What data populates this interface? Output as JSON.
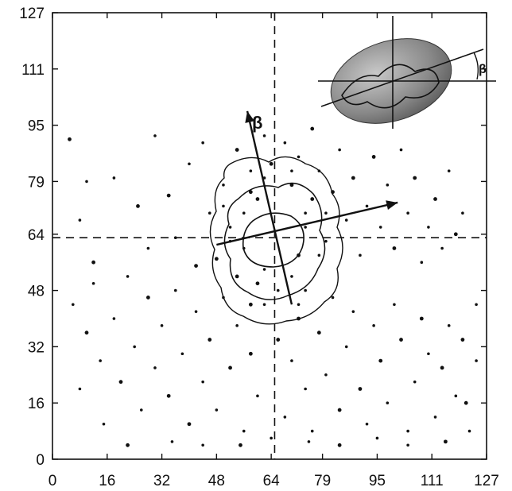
{
  "chart_data": {
    "type": "scatter",
    "title": "",
    "xlabel": "",
    "ylabel": "",
    "xlim": [
      0,
      127
    ],
    "ylim": [
      0,
      127
    ],
    "x_ticks": [
      "0",
      "16",
      "32",
      "48",
      "64",
      "79",
      "95",
      "111",
      "127"
    ],
    "y_ticks": [
      "0",
      "16",
      "32",
      "48",
      "64",
      "79",
      "95",
      "111",
      "127"
    ],
    "tick_values": [
      0,
      16,
      32,
      48,
      64,
      79,
      95,
      111,
      127
    ],
    "grid": false,
    "legend": "none",
    "center": [
      65,
      63
    ],
    "crosshair": {
      "x": 65,
      "y": 63
    },
    "axis_beta": {
      "label": "β",
      "from": [
        70,
        44
      ],
      "to": [
        57,
        99
      ]
    },
    "axis_transverse": {
      "from": [
        48,
        61
      ],
      "to": [
        101,
        73
      ]
    },
    "inset": {
      "beta_label": "β",
      "position": "top-right"
    },
    "series": [
      {
        "values": [
          [
            5,
            91
          ],
          [
            8,
            68
          ],
          [
            10,
            79
          ],
          [
            12,
            56
          ],
          [
            18,
            80
          ],
          [
            22,
            52
          ],
          [
            25,
            72
          ],
          [
            28,
            60
          ],
          [
            30,
            92
          ],
          [
            34,
            75
          ],
          [
            36,
            63
          ],
          [
            40,
            84
          ],
          [
            42,
            55
          ],
          [
            44,
            90
          ],
          [
            46,
            70
          ],
          [
            48,
            57
          ],
          [
            50,
            78
          ],
          [
            52,
            66
          ],
          [
            54,
            88
          ],
          [
            56,
            60
          ],
          [
            58,
            82
          ],
          [
            60,
            74
          ],
          [
            62,
            92
          ],
          [
            68,
            90
          ],
          [
            70,
            78
          ],
          [
            72,
            86
          ],
          [
            74,
            70
          ],
          [
            76,
            94
          ],
          [
            78,
            82
          ],
          [
            80,
            62
          ],
          [
            82,
            76
          ],
          [
            84,
            88
          ],
          [
            86,
            68
          ],
          [
            88,
            80
          ],
          [
            90,
            58
          ],
          [
            92,
            72
          ],
          [
            94,
            86
          ],
          [
            96,
            66
          ],
          [
            98,
            78
          ],
          [
            100,
            60
          ],
          [
            102,
            88
          ],
          [
            104,
            70
          ],
          [
            106,
            80
          ],
          [
            108,
            56
          ],
          [
            110,
            66
          ],
          [
            112,
            74
          ],
          [
            114,
            60
          ],
          [
            116,
            82
          ],
          [
            118,
            64
          ],
          [
            120,
            70
          ],
          [
            6,
            44
          ],
          [
            10,
            36
          ],
          [
            14,
            28
          ],
          [
            18,
            40
          ],
          [
            20,
            22
          ],
          [
            24,
            32
          ],
          [
            26,
            14
          ],
          [
            28,
            46
          ],
          [
            30,
            26
          ],
          [
            32,
            38
          ],
          [
            34,
            18
          ],
          [
            36,
            48
          ],
          [
            38,
            30
          ],
          [
            40,
            10
          ],
          [
            42,
            42
          ],
          [
            44,
            22
          ],
          [
            46,
            34
          ],
          [
            48,
            14
          ],
          [
            50,
            46
          ],
          [
            52,
            26
          ],
          [
            54,
            38
          ],
          [
            56,
            8
          ],
          [
            58,
            30
          ],
          [
            60,
            18
          ],
          [
            62,
            44
          ],
          [
            66,
            34
          ],
          [
            68,
            12
          ],
          [
            70,
            28
          ],
          [
            72,
            40
          ],
          [
            74,
            20
          ],
          [
            76,
            8
          ],
          [
            78,
            36
          ],
          [
            80,
            24
          ],
          [
            82,
            46
          ],
          [
            84,
            14
          ],
          [
            86,
            32
          ],
          [
            88,
            42
          ],
          [
            90,
            20
          ],
          [
            92,
            10
          ],
          [
            94,
            38
          ],
          [
            96,
            28
          ],
          [
            98,
            16
          ],
          [
            100,
            44
          ],
          [
            102,
            34
          ],
          [
            104,
            8
          ],
          [
            106,
            22
          ],
          [
            108,
            40
          ],
          [
            110,
            30
          ],
          [
            112,
            12
          ],
          [
            114,
            26
          ],
          [
            116,
            38
          ],
          [
            118,
            18
          ],
          [
            120,
            34
          ],
          [
            122,
            8
          ],
          [
            124,
            28
          ],
          [
            121,
            16
          ],
          [
            15,
            10
          ],
          [
            35,
            5
          ],
          [
            55,
            4
          ],
          [
            75,
            5
          ],
          [
            95,
            6
          ],
          [
            115,
            5
          ],
          [
            8,
            20
          ],
          [
            12,
            50
          ],
          [
            22,
            4
          ],
          [
            44,
            4
          ],
          [
            64,
            6
          ],
          [
            84,
            4
          ],
          [
            104,
            4
          ],
          [
            124,
            44
          ],
          [
            60,
            50
          ],
          [
            62,
            54
          ],
          [
            70,
            52
          ],
          [
            72,
            58
          ],
          [
            74,
            66
          ],
          [
            56,
            70
          ],
          [
            58,
            76
          ],
          [
            62,
            80
          ],
          [
            70,
            82
          ],
          [
            76,
            74
          ],
          [
            78,
            58
          ],
          [
            52,
            62
          ],
          [
            54,
            52
          ],
          [
            66,
            48
          ],
          [
            74,
            48
          ],
          [
            64,
            84
          ],
          [
            50,
            72
          ],
          [
            80,
            70
          ],
          [
            58,
            44
          ],
          [
            72,
            44
          ]
        ]
      }
    ]
  }
}
